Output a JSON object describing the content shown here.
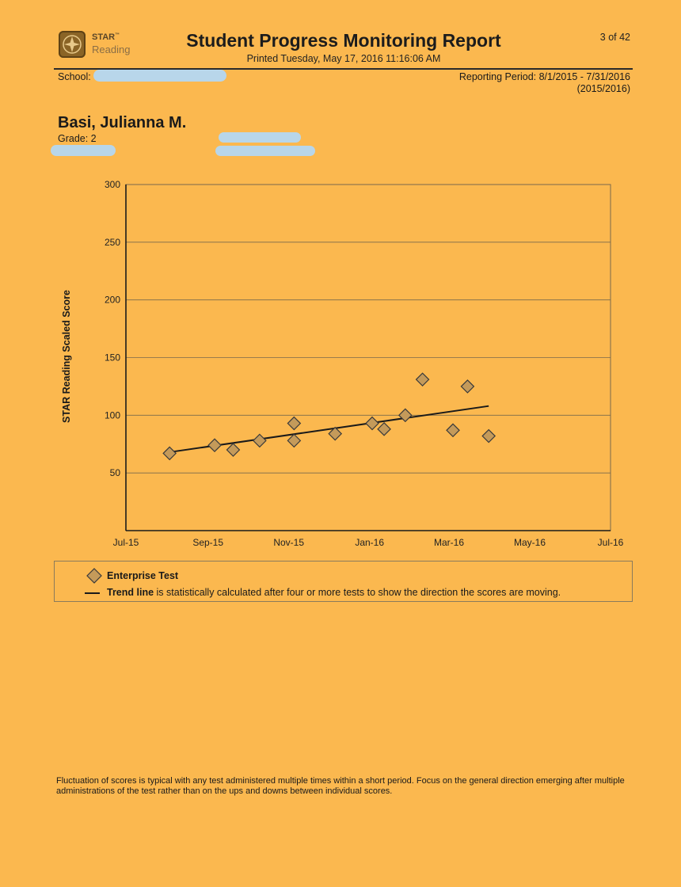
{
  "header": {
    "logo_brand": "STAR",
    "logo_trademark": "™",
    "logo_product": "Reading",
    "title": "Student Progress Monitoring Report",
    "printed": "Printed Tuesday, May 17, 2016 11:16:06 AM",
    "page": "3 of 42",
    "school_label": "School:",
    "reporting_period": "Reporting Period: 8/1/2015 - 7/31/2016",
    "school_year": "(2015/2016)"
  },
  "student": {
    "name": "Basi, Julianna M.",
    "grade": "Grade: 2"
  },
  "chart_data": {
    "type": "scatter",
    "ylabel": "STAR Reading Scaled Score",
    "ylim": [
      0,
      300
    ],
    "yticks": [
      "50",
      "100",
      "150",
      "200",
      "250",
      "300"
    ],
    "xlim": [
      "2015-07-01",
      "2016-07-01"
    ],
    "xticks": [
      {
        "date": "2015-07-01",
        "label": "Jul-15"
      },
      {
        "date": "2015-09-01",
        "label": "Sep-15"
      },
      {
        "date": "2015-11-01",
        "label": "Nov-15"
      },
      {
        "date": "2016-01-01",
        "label": "Jan-16"
      },
      {
        "date": "2016-03-01",
        "label": "Mar-16"
      },
      {
        "date": "2016-05-01",
        "label": "May-16"
      },
      {
        "date": "2016-07-01",
        "label": "Jul-16"
      }
    ],
    "grid": true,
    "series": [
      {
        "name": "Enterprise Test",
        "marker": "diamond",
        "points": [
          {
            "x": "2015-08-03",
            "y": 67
          },
          {
            "x": "2015-09-06",
            "y": 74
          },
          {
            "x": "2015-09-20",
            "y": 70
          },
          {
            "x": "2015-10-10",
            "y": 78
          },
          {
            "x": "2015-11-05",
            "y": 78
          },
          {
            "x": "2015-11-05",
            "y": 93
          },
          {
            "x": "2015-12-06",
            "y": 84
          },
          {
            "x": "2016-01-03",
            "y": 93
          },
          {
            "x": "2016-01-12",
            "y": 88
          },
          {
            "x": "2016-01-28",
            "y": 100
          },
          {
            "x": "2016-02-10",
            "y": 131
          },
          {
            "x": "2016-03-04",
            "y": 87
          },
          {
            "x": "2016-03-15",
            "y": 125
          },
          {
            "x": "2016-03-31",
            "y": 82
          }
        ]
      }
    ],
    "trend_line": {
      "from": {
        "x": "2015-08-03",
        "y": 68
      },
      "to": {
        "x": "2016-03-31",
        "y": 108
      }
    },
    "legend": [
      {
        "bold": "Enterprise Test",
        "text": ""
      },
      {
        "bold": "Trend line",
        "text": " is statistically calculated after four or more tests to show the direction the scores are moving."
      }
    ],
    "colors": {
      "marker_fill": "#c49a5a",
      "marker_stroke": "#3a3a3a",
      "grid": "#7a6a4c",
      "line": "#1a1a1a"
    }
  },
  "footnote": "Fluctuation of scores is typical with any test administered multiple times within a short period. Focus on the general direction emerging after multiple administrations of the test rather than on the ups and downs between individual scores."
}
